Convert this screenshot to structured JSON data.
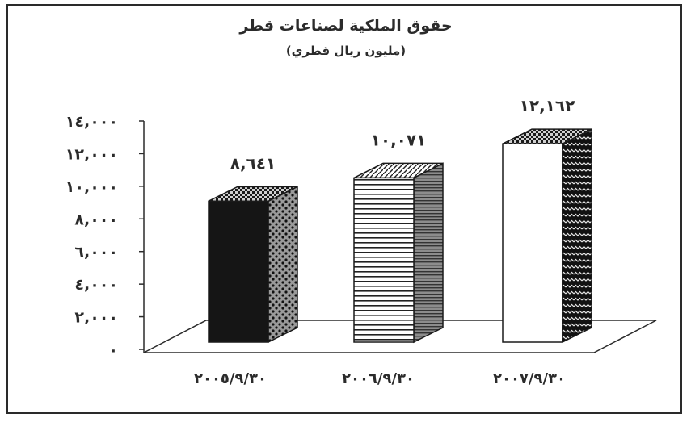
{
  "chart_data": {
    "type": "bar",
    "title": "حقوق الملكية لصناعات قطر",
    "subtitle": "(مليون ريال قطري)",
    "categories": [
      "٢٠٠٥/٩/٣٠",
      "٢٠٠٦/٩/٣٠",
      "٢٠٠٧/٩/٣٠"
    ],
    "values": [
      8641,
      10071,
      12162
    ],
    "value_labels": [
      "٨,٦٤١",
      "١٠,٠٧١",
      "١٢,١٦٢"
    ],
    "ylim": [
      0,
      14000
    ],
    "yticks": [
      0,
      2000,
      4000,
      6000,
      8000,
      10000,
      12000,
      14000
    ],
    "ytick_labels": [
      "٠",
      "٢,٠٠٠",
      "٤,٠٠٠",
      "٦,٠٠٠",
      "٨,٠٠٠",
      "١٠,٠٠٠",
      "١٢,٠٠٠",
      "١٤,٠٠٠"
    ],
    "xlabel": "",
    "ylabel": "",
    "grid": false,
    "style": "3d-bar",
    "bar_fills": [
      "solid-black",
      "horizontal-stripes",
      "white"
    ],
    "colors": {
      "ink": "#2b2b2b",
      "bar1_front": "#151515",
      "bar2_front": "#ffffff",
      "bar3_front": "#ffffff"
    }
  }
}
